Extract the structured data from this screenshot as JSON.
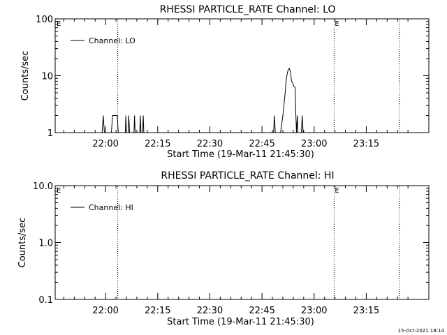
{
  "footer_stamp": "15-Oct-2021 18:14",
  "chart_data": [
    {
      "type": "line",
      "title": "RHESSI PARTICLE_RATE Channel: LO",
      "xlabel": "Start Time (19-Mar-11 21:45:30)",
      "ylabel": "Counts/sec",
      "y_scale": "log",
      "ylim": [
        1,
        100
      ],
      "y_ticks": [
        1,
        10,
        100
      ],
      "y_tick_labels": [
        "1",
        "10",
        "100"
      ],
      "xlim": [
        "21:45:30",
        "23:33:00"
      ],
      "x_ticks": [
        "22:00",
        "22:15",
        "22:30",
        "22:45",
        "23:00",
        "23:15"
      ],
      "event_lines": [
        {
          "time": "22:03:30",
          "label": ""
        },
        {
          "time": "23:05:45",
          "label": "E"
        },
        {
          "time": "23:24:30",
          "label": ""
        }
      ],
      "corner_label": "E",
      "legend": {
        "placement": "top-left",
        "entries": [
          "Channel: LO"
        ]
      },
      "series": [
        {
          "name": "Channel: LO",
          "points": [
            [
              "21:45:30",
              1
            ],
            [
              "21:59:00",
              1
            ],
            [
              "21:59:20",
              2
            ],
            [
              "21:59:40",
              1
            ],
            [
              "22:01:40",
              1
            ],
            [
              "22:02:00",
              2
            ],
            [
              "22:03:20",
              2
            ],
            [
              "22:03:40",
              1
            ],
            [
              "22:05:40",
              1
            ],
            [
              "22:05:50",
              2
            ],
            [
              "22:06:00",
              1
            ],
            [
              "22:06:30",
              1
            ],
            [
              "22:06:40",
              2
            ],
            [
              "22:06:55",
              1
            ],
            [
              "22:08:10",
              1
            ],
            [
              "22:08:20",
              2
            ],
            [
              "22:08:30",
              1
            ],
            [
              "22:09:50",
              1
            ],
            [
              "22:10:00",
              2
            ],
            [
              "22:10:10",
              1
            ],
            [
              "22:10:40",
              1
            ],
            [
              "22:10:50",
              2
            ],
            [
              "22:11:00",
              1
            ],
            [
              "22:48:20",
              1
            ],
            [
              "22:48:35",
              2
            ],
            [
              "22:48:50",
              1
            ],
            [
              "22:50:20",
              1
            ],
            [
              "22:51:00",
              2
            ],
            [
              "22:51:40",
              5
            ],
            [
              "22:52:00",
              9
            ],
            [
              "22:52:30",
              12.5
            ],
            [
              "22:52:50",
              13.5
            ],
            [
              "22:53:10",
              12
            ],
            [
              "22:53:30",
              8
            ],
            [
              "22:53:50",
              7.5
            ],
            [
              "22:54:10",
              6.5
            ],
            [
              "22:54:30",
              6.3
            ],
            [
              "22:54:45",
              2
            ],
            [
              "22:54:55",
              1
            ],
            [
              "22:55:10",
              2
            ],
            [
              "22:55:20",
              1
            ],
            [
              "22:56:20",
              1
            ],
            [
              "22:56:35",
              2
            ],
            [
              "22:56:50",
              1
            ],
            [
              "23:33:00",
              1
            ]
          ]
        }
      ]
    },
    {
      "type": "line",
      "title": "RHESSI PARTICLE_RATE Channel: HI",
      "xlabel": "Start Time (19-Mar-11 21:45:30)",
      "ylabel": "Counts/sec",
      "y_scale": "log",
      "ylim": [
        0.1,
        10
      ],
      "y_ticks": [
        0.1,
        1,
        10
      ],
      "y_tick_labels": [
        "0.1",
        "1.0",
        "10.0"
      ],
      "xlim": [
        "21:45:30",
        "23:33:00"
      ],
      "x_ticks": [
        "22:00",
        "22:15",
        "22:30",
        "22:45",
        "23:00",
        "23:15"
      ],
      "event_lines": [
        {
          "time": "22:03:30",
          "label": ""
        },
        {
          "time": "23:05:45",
          "label": "E"
        },
        {
          "time": "23:24:30",
          "label": ""
        }
      ],
      "corner_label": "E",
      "legend": {
        "placement": "top-left",
        "entries": [
          "Channel: HI"
        ]
      },
      "series": [
        {
          "name": "Channel: HI",
          "points": []
        }
      ]
    }
  ]
}
